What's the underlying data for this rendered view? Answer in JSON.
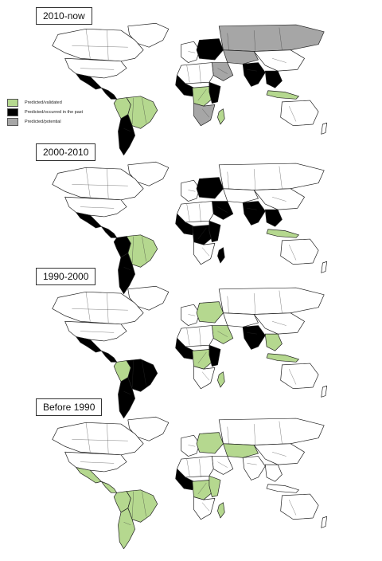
{
  "colors": {
    "validated": "#b5d88f",
    "occurred": "#000000",
    "potential": "#a6a6a6",
    "land": "#ffffff"
  },
  "legend": {
    "items": [
      {
        "label": "Predicted/validated",
        "color_key": "validated"
      },
      {
        "label": "Predicted/occurred in the past",
        "color_key": "occurred"
      },
      {
        "label": "Predicted/potential",
        "color_key": "potential"
      }
    ]
  },
  "panels": [
    {
      "label": "2010-now",
      "regions": {
        "brazil": "validated",
        "south_cone": "occurred",
        "andes_north": "validated",
        "central_america": "occurred",
        "mexico": "occurred",
        "west_africa": "occurred",
        "central_africa": "validated",
        "east_africa": "occurred",
        "southern_africa": "potential",
        "madagascar": "validated",
        "russia": "potential",
        "central_asia": "potential",
        "middle_east": "potential",
        "south_asia": "occurred",
        "southeast_asia": "occurred",
        "indonesia": "validated",
        "eastern_europe": "occurred"
      }
    },
    {
      "label": "2000-2010",
      "regions": {
        "brazil": "validated",
        "south_cone": "occurred",
        "andes_north": "occurred",
        "central_america": "occurred",
        "mexico": "occurred",
        "west_africa": "occurred",
        "central_africa": "occurred",
        "east_africa": "occurred",
        "southern_africa": "land",
        "madagascar": "occurred",
        "russia": "land",
        "central_asia": "land",
        "middle_east": "occurred",
        "south_asia": "occurred",
        "southeast_asia": "occurred",
        "indonesia": "validated",
        "eastern_europe": "occurred"
      }
    },
    {
      "label": "1990-2000",
      "regions": {
        "brazil": "occurred",
        "south_cone": "occurred",
        "andes_north": "validated",
        "central_america": "occurred",
        "mexico": "occurred",
        "west_africa": "occurred",
        "central_africa": "validated",
        "east_africa": "occurred",
        "southern_africa": "land",
        "madagascar": "validated",
        "russia": "land",
        "central_asia": "land",
        "middle_east": "validated",
        "south_asia": "occurred",
        "southeast_asia": "validated",
        "indonesia": "validated",
        "eastern_europe": "validated"
      }
    },
    {
      "label": "Before 1990",
      "regions": {
        "brazil": "validated",
        "south_cone": "validated",
        "andes_north": "validated",
        "central_america": "validated",
        "mexico": "validated",
        "west_africa": "occurred",
        "central_africa": "validated",
        "east_africa": "validated",
        "southern_africa": "land",
        "madagascar": "validated",
        "russia": "land",
        "central_asia": "validated",
        "middle_east": "land",
        "south_asia": "land",
        "southeast_asia": "land",
        "indonesia": "land",
        "eastern_europe": "validated"
      }
    }
  ]
}
